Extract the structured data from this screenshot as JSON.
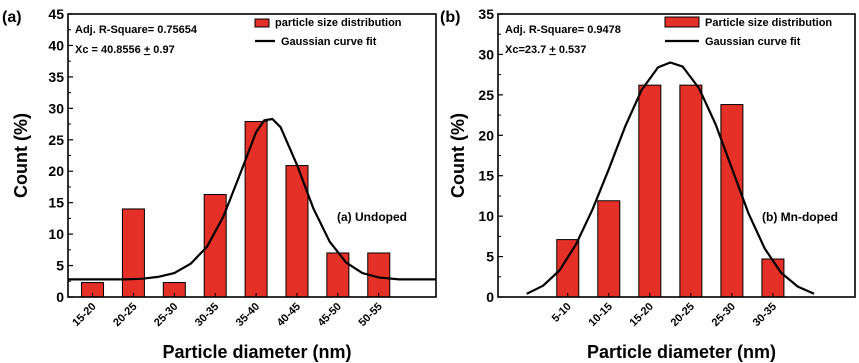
{
  "chart_data": [
    {
      "type": "bar",
      "panel_label": "(a)",
      "categories": [
        "15-20",
        "20-25",
        "25-30",
        "30-35",
        "35-40",
        "40-45",
        "45-50",
        "50-55"
      ],
      "series": [
        {
          "name": "particle size distribution",
          "values": [
            2.3,
            14,
            2.3,
            16.3,
            27.9,
            20.9,
            7,
            7
          ]
        }
      ],
      "fit": {
        "name": "Gaussian curve fit",
        "x": [
          -0.6,
          0,
          0.4,
          0.8,
          1.2,
          1.6,
          2.0,
          2.4,
          2.8,
          3.2,
          3.6,
          4.0,
          4.2,
          4.4,
          4.6,
          5.0,
          5.4,
          5.8,
          6.2,
          6.6,
          7.0,
          7.5,
          8.4
        ],
        "y": [
          2.8,
          2.8,
          2.8,
          2.8,
          2.9,
          3.2,
          3.8,
          5.3,
          8.0,
          12.8,
          19.4,
          26.2,
          28.1,
          28.3,
          27.0,
          21.0,
          14.1,
          8.8,
          5.5,
          3.8,
          3.1,
          2.8,
          2.8
        ]
      },
      "stats": [
        "Adj. R-Square= 0.75654",
        "Xc = 40.8556 + 0.97"
      ],
      "annotation": "(a) Undoped",
      "xlabel": "Particle diameter (nm)",
      "ylabel": "Count (%)",
      "ylim": [
        0,
        45
      ],
      "yticks": [
        "0",
        "5",
        "10",
        "15",
        "20",
        "25",
        "30",
        "35",
        "40",
        "45"
      ],
      "legend_position": "top-right",
      "colors": {
        "bar": "#e53027",
        "fit": "#000000"
      }
    },
    {
      "type": "bar",
      "panel_label": "(b)",
      "categories": [
        "5-10",
        "10-15",
        "15-20",
        "20-25",
        "25-30",
        "30-35"
      ],
      "series": [
        {
          "name": "Particle size distribution",
          "values": [
            7.1,
            11.9,
            26.2,
            26.2,
            23.8,
            4.7
          ]
        }
      ],
      "fit": {
        "name": "Gaussian curve fit",
        "x": [
          -1.0,
          -0.6,
          -0.2,
          0.2,
          0.6,
          1.0,
          1.4,
          1.8,
          2.2,
          2.5,
          2.8,
          3.2,
          3.6,
          4.0,
          4.4,
          4.8,
          5.2,
          5.6,
          6.0
        ],
        "y": [
          0.4,
          1.4,
          3.3,
          6.5,
          10.8,
          15.8,
          21.1,
          25.6,
          28.4,
          29.0,
          28.5,
          25.8,
          21.4,
          15.9,
          10.4,
          6.0,
          3.0,
          1.3,
          0.4
        ]
      },
      "stats": [
        "Adj. R-Square= 0.9478",
        "Xc=23.7 + 0.537"
      ],
      "annotation": "(b) Mn-doped",
      "xlabel": "Particle diameter (nm)",
      "ylabel": "Count (%)",
      "ylim": [
        0,
        35
      ],
      "yticks": [
        "0",
        "5",
        "10",
        "15",
        "20",
        "25",
        "30",
        "35"
      ],
      "legend_position": "top-right",
      "colors": {
        "bar": "#e53027",
        "fit": "#000000"
      }
    }
  ]
}
